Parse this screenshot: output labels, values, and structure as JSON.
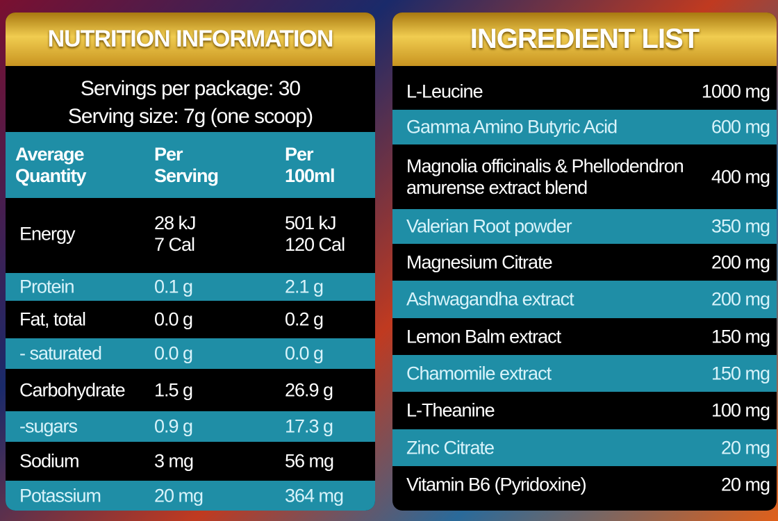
{
  "nutrition": {
    "title": "NUTRITION INFORMATION",
    "servings": "Servings per package: 30",
    "serving_size": "Serving size: 7g (one scoop)",
    "header": [
      "Average Quantity",
      "Per Serving",
      "Per 100ml"
    ],
    "energy": {
      "name": "Energy",
      "serving": [
        "28 kJ",
        "7 Cal"
      ],
      "per100": [
        "501 kJ",
        "120 Cal"
      ]
    },
    "rows": [
      [
        "Protein",
        "0.1 g",
        "2.1 g"
      ],
      [
        "Fat, total",
        "0.0 g",
        "0.2 g"
      ],
      [
        "- saturated",
        "0.0 g",
        "0.0 g"
      ],
      [
        "Carbohydrate",
        "1.5 g",
        "26.9 g"
      ],
      [
        "-sugars",
        "0.9 g",
        "17.3 g"
      ],
      [
        "Sodium",
        "3 mg",
        "56 mg"
      ],
      [
        "Potassium",
        "20 mg",
        "364 mg"
      ]
    ]
  },
  "ingredients": {
    "title": "INGREDIENT LIST",
    "rows": [
      [
        "L-Leucine",
        "1000 mg"
      ],
      [
        "Gamma Amino Butyric Acid",
        "600 mg"
      ],
      [
        "Magnolia officinalis & Phellodendron amurense extract blend",
        "400 mg"
      ],
      [
        "Valerian Root powder",
        "350 mg"
      ],
      [
        "Magnesium Citrate",
        "200 mg"
      ],
      [
        "Ashwagandha extract",
        "200 mg"
      ],
      [
        "Lemon Balm extract",
        "150 mg"
      ],
      [
        "Chamomile extract",
        "150 mg"
      ],
      [
        "L-Theanine",
        "100 mg"
      ],
      [
        "Zinc Citrate",
        "20 mg"
      ],
      [
        "Vitamin B6 (Pyridoxine)",
        "20 mg"
      ]
    ]
  }
}
